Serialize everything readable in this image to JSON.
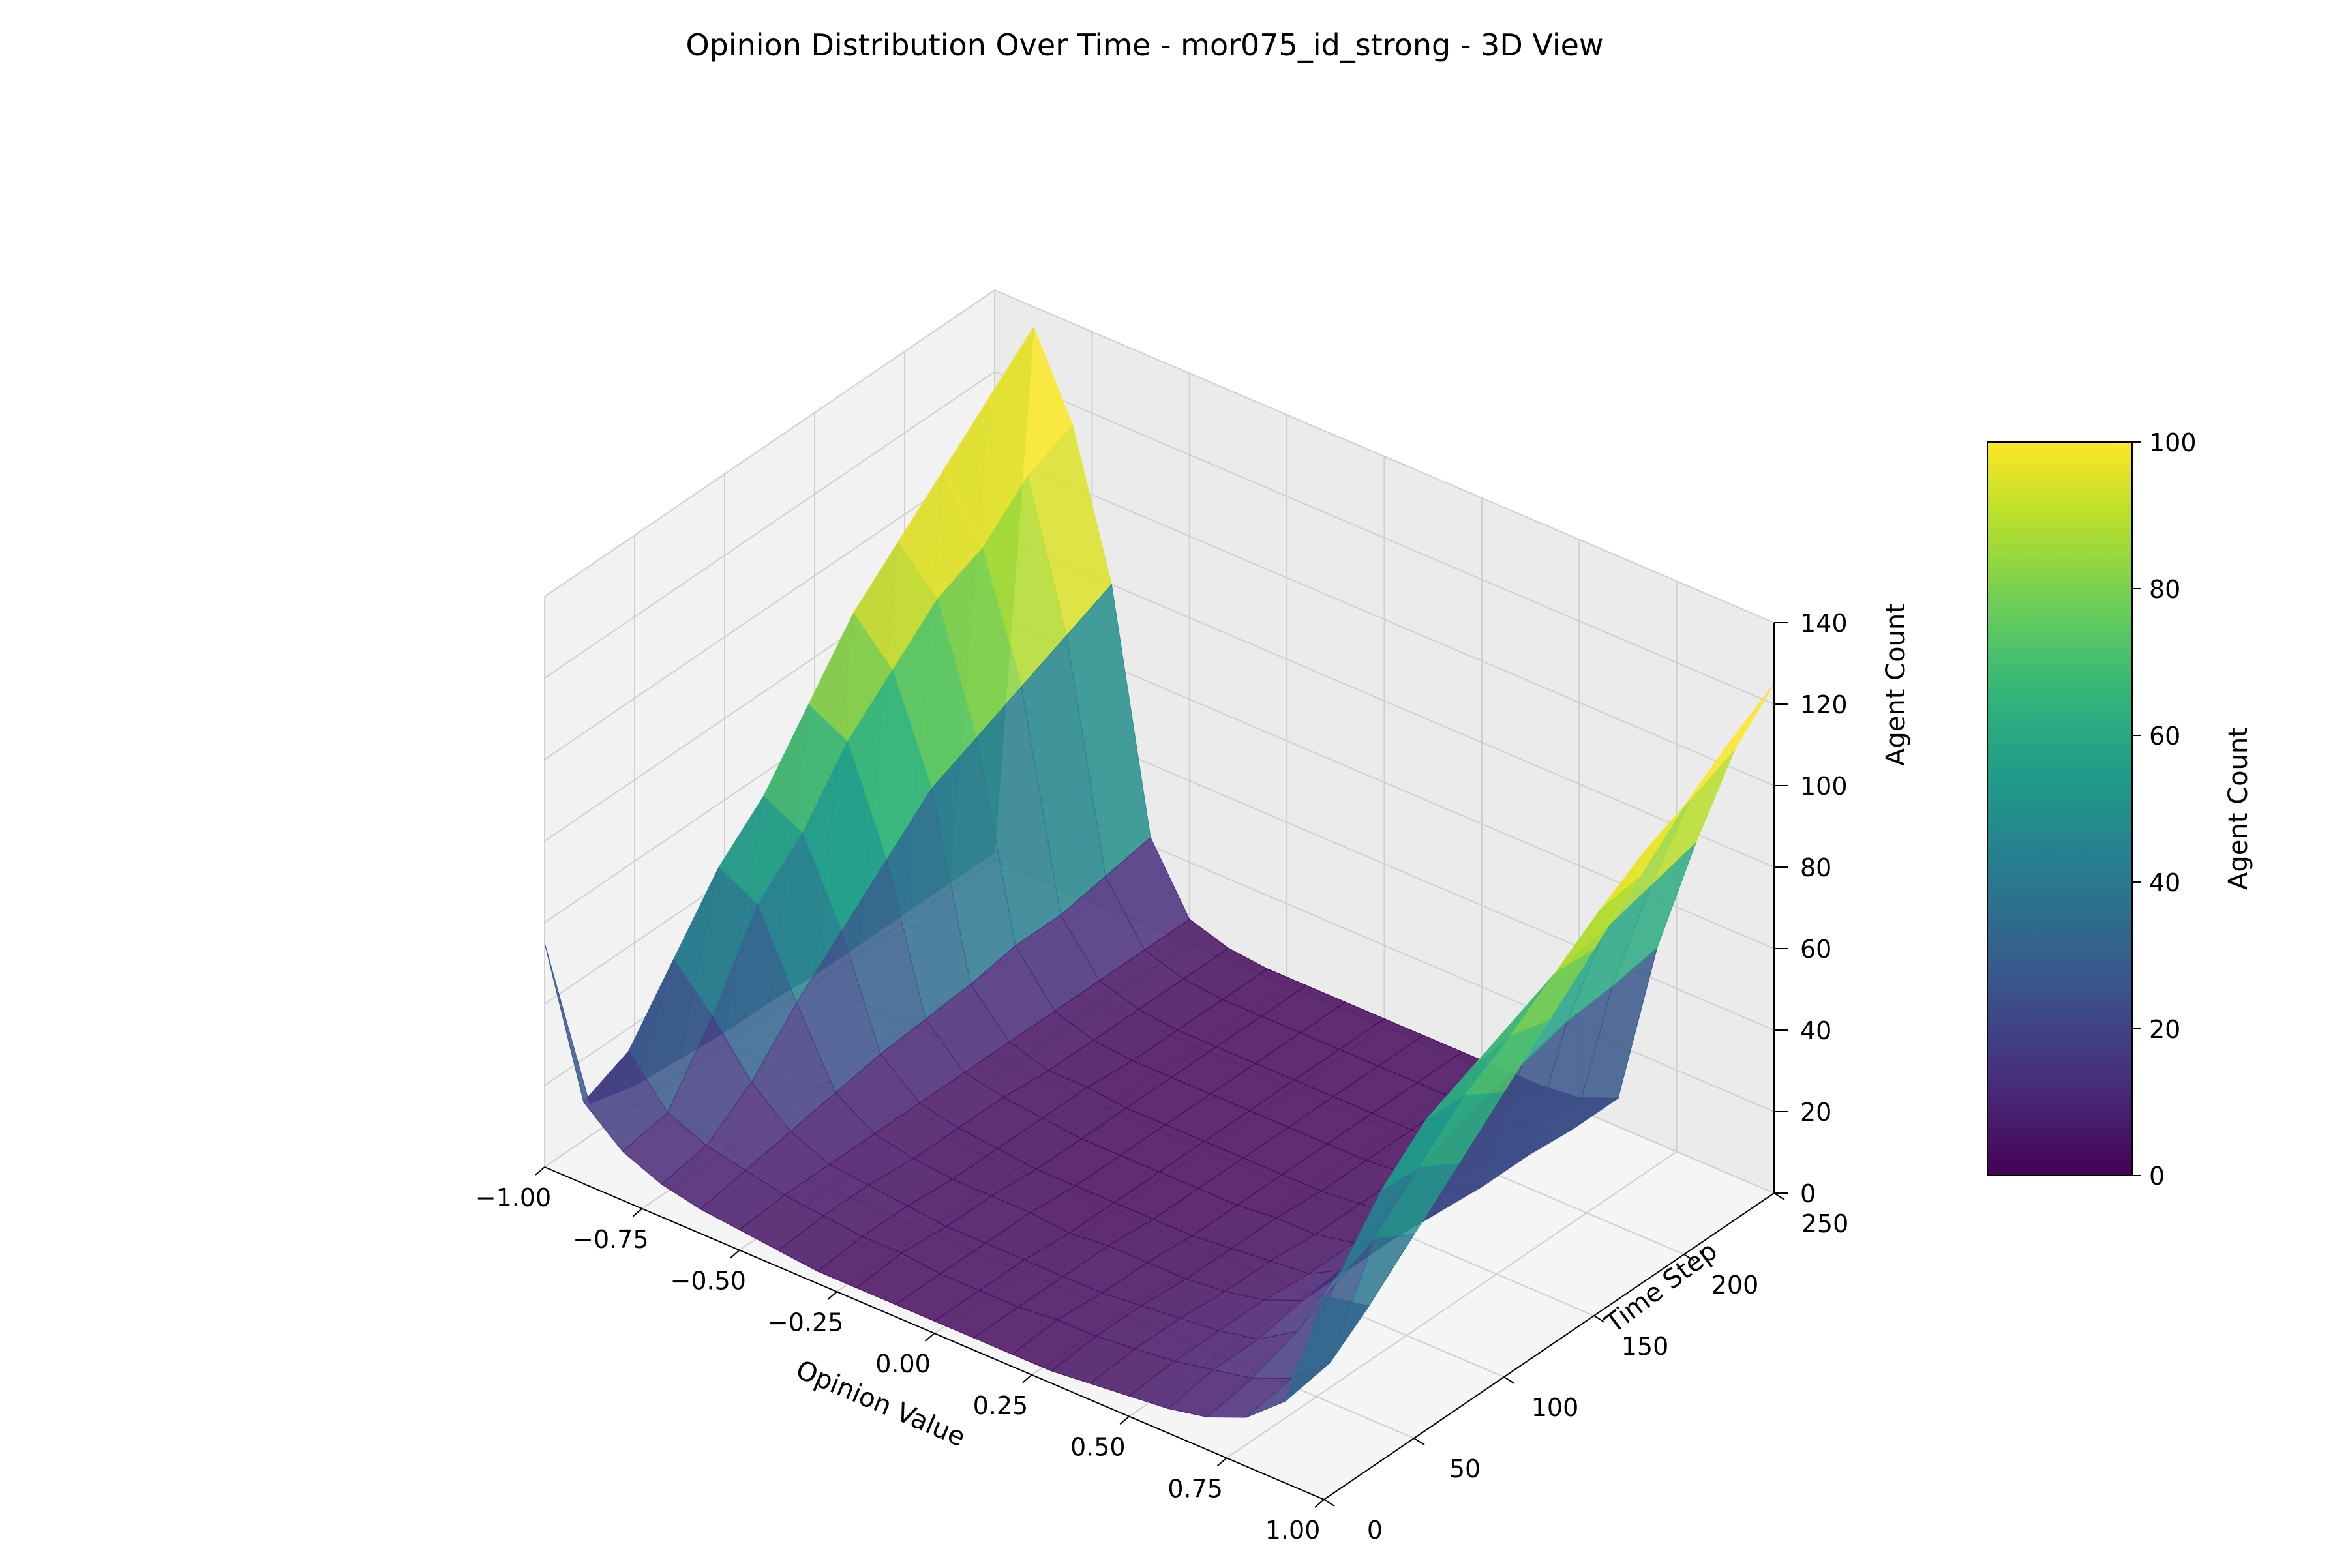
{
  "chart_data": {
    "type": "surface3d",
    "title": "Opinion Distribution Over Time - mor075_id_strong - 3D View",
    "x_label": "Opinion Value",
    "y_label": "Time Step",
    "z_label": "Agent Count",
    "x_range": [
      -1.0,
      1.0
    ],
    "y_range": [
      0,
      250
    ],
    "z_range": [
      0,
      140
    ],
    "x_ticks": [
      "−1.00",
      "−0.75",
      "−0.50",
      "−0.25",
      "0.00",
      "0.25",
      "0.50",
      "0.75",
      "1.00"
    ],
    "y_ticks": [
      "0",
      "50",
      "100",
      "150",
      "200",
      "250"
    ],
    "z_ticks": [
      "0",
      "20",
      "40",
      "60",
      "80",
      "100",
      "120",
      "140"
    ],
    "colorbar": {
      "label": "Agent Count",
      "colormap": "viridis",
      "range": [
        0,
        100
      ],
      "ticks": [
        "0",
        "20",
        "40",
        "60",
        "80",
        "100"
      ]
    },
    "surface": {
      "description_of_shape": "approximate reconstruction",
      "opinion_values": [
        -1.0,
        -0.9,
        -0.8,
        -0.7,
        -0.6,
        -0.5,
        -0.4,
        -0.3,
        -0.2,
        -0.1,
        0.0,
        0.1,
        0.2,
        0.3,
        0.4,
        0.5,
        0.6,
        0.7,
        0.8,
        0.9,
        1.0
      ],
      "time_steps": [
        0,
        25,
        50,
        75,
        100,
        125,
        150,
        175,
        200,
        225,
        250
      ],
      "agent_counts": [
        [
          55,
          20,
          12,
          8,
          6,
          5,
          4,
          3,
          3,
          3,
          3,
          3,
          3,
          3,
          4,
          5,
          6,
          8,
          12,
          20,
          50
        ],
        [
          8,
          25,
          14,
          10,
          8,
          6,
          5,
          4,
          4,
          3,
          3,
          3,
          4,
          4,
          5,
          6,
          8,
          10,
          14,
          22,
          40
        ],
        [
          5,
          40,
          30,
          18,
          10,
          6,
          5,
          4,
          3,
          3,
          3,
          3,
          3,
          4,
          5,
          6,
          8,
          14,
          30,
          45,
          50
        ],
        [
          4,
          55,
          50,
          30,
          12,
          6,
          4,
          3,
          3,
          3,
          2,
          3,
          3,
          3,
          4,
          6,
          10,
          22,
          45,
          55,
          60
        ],
        [
          3,
          65,
          60,
          40,
          14,
          6,
          4,
          3,
          2,
          2,
          2,
          2,
          2,
          3,
          4,
          5,
          10,
          30,
          55,
          65,
          70
        ],
        [
          3,
          80,
          75,
          50,
          15,
          6,
          4,
          3,
          2,
          2,
          2,
          2,
          2,
          3,
          3,
          5,
          10,
          35,
          60,
          72,
          80
        ],
        [
          2,
          95,
          85,
          60,
          16,
          6,
          3,
          3,
          2,
          2,
          2,
          2,
          2,
          2,
          3,
          4,
          9,
          40,
          65,
          80,
          90
        ],
        [
          2,
          105,
          95,
          65,
          18,
          6,
          3,
          2,
          2,
          2,
          2,
          2,
          2,
          2,
          3,
          4,
          8,
          42,
          70,
          88,
          100
        ],
        [
          2,
          115,
          100,
          70,
          18,
          6,
          3,
          2,
          2,
          2,
          2,
          2,
          2,
          2,
          2,
          3,
          8,
          45,
          72,
          95,
          110
        ],
        [
          2,
          125,
          110,
          75,
          20,
          6,
          3,
          2,
          2,
          2,
          2,
          2,
          2,
          2,
          2,
          3,
          7,
          46,
          75,
          100,
          118
        ],
        [
          2,
          135,
          115,
          80,
          22,
          6,
          3,
          2,
          2,
          2,
          2,
          2,
          2,
          2,
          2,
          3,
          7,
          48,
          78,
          105,
          125
        ]
      ]
    }
  }
}
